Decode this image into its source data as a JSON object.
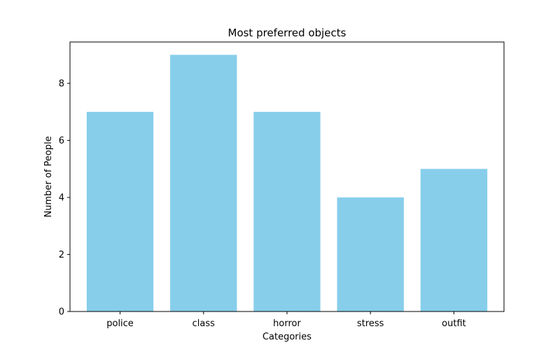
{
  "chart_data": {
    "type": "bar",
    "title": "Most preferred objects",
    "xlabel": "Categories",
    "ylabel": "Number of People",
    "categories": [
      "police",
      "class",
      "horror",
      "stress",
      "outfit"
    ],
    "values": [
      7,
      9,
      7,
      4,
      5
    ],
    "ylim": [
      0,
      9.45
    ],
    "yticks": [
      0,
      2,
      4,
      6,
      8
    ],
    "bar_color": "#87CEEB",
    "grid": false,
    "legend": "none"
  }
}
